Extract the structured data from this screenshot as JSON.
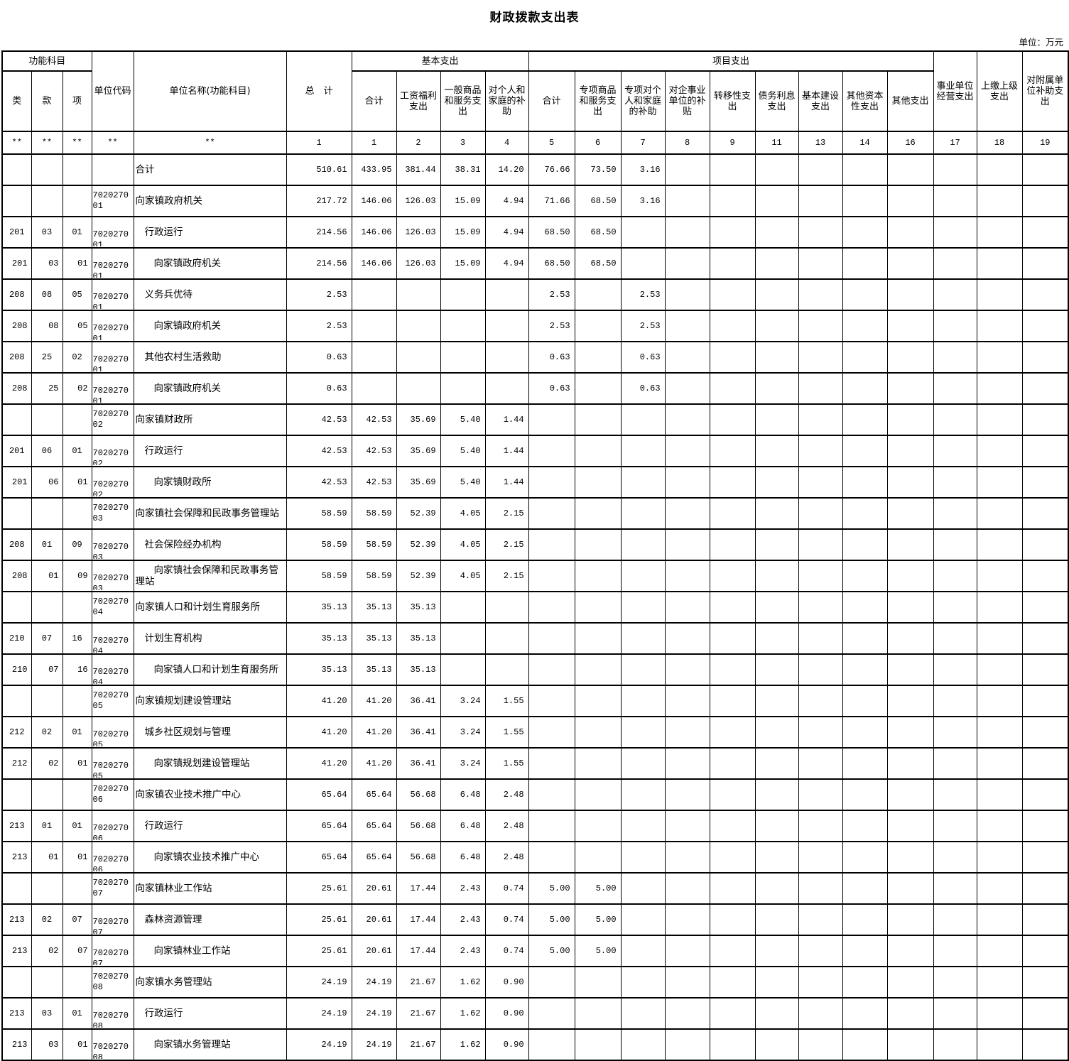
{
  "title": "财政拨款支出表",
  "unit_note": "单位：万元",
  "header": {
    "func_subject": "功能科目",
    "cls": "类",
    "section": "款",
    "item": "项",
    "unit_code": "单位代码",
    "unit_name": "单位名称(功能科目)",
    "grand_total": "总　计",
    "basic_group": "基本支出",
    "project_group": "项目支出",
    "basic_cols": [
      "合计",
      "工资福利支出",
      "一般商品和服务支出",
      "对个人和家庭的补助"
    ],
    "project_cols": [
      "合计",
      "专项商品和服务支出",
      "专项对个人和家庭的补助",
      "对企事业单位的补贴",
      "转移性支出",
      "债务利息支出",
      "基本建设支出",
      "其他资本性支出",
      "其他支出"
    ],
    "tail_cols": [
      "事业单位经营支出",
      "上缴上级支出",
      "对附属单位补助支出"
    ]
  },
  "code_row": [
    "**",
    "**",
    "**",
    "**",
    "**",
    "1",
    "1",
    "2",
    "3",
    "4",
    "5",
    "6",
    "7",
    "8",
    "9",
    "11",
    "13",
    "14",
    "16",
    "17",
    "18",
    "19"
  ],
  "rows": [
    {
      "cls": "",
      "kuan": "",
      "xiang": "",
      "code": "",
      "name": "合计",
      "level": 0,
      "values": [
        "510.61",
        "433.95",
        "381.44",
        "38.31",
        "14.20",
        "76.66",
        "73.50",
        "3.16",
        "",
        "",
        "",
        "",
        "",
        "",
        "",
        "",
        ""
      ]
    },
    {
      "cls": "",
      "kuan": "",
      "xiang": "",
      "code": "702027001",
      "name": "向家镇政府机关",
      "level": 0,
      "values": [
        "217.72",
        "146.06",
        "126.03",
        "15.09",
        "4.94",
        "71.66",
        "68.50",
        "3.16",
        "",
        "",
        "",
        "",
        "",
        "",
        "",
        "",
        ""
      ]
    },
    {
      "cls": "201",
      "kuan": "03",
      "xiang": "01",
      "code": "702027001",
      "name": "行政运行",
      "level": 1,
      "values": [
        "214.56",
        "146.06",
        "126.03",
        "15.09",
        "4.94",
        "68.50",
        "68.50",
        "",
        "",
        "",
        "",
        "",
        "",
        "",
        "",
        "",
        ""
      ]
    },
    {
      "cls": "201",
      "kuan": "03",
      "xiang": "01",
      "code": "702027001",
      "name": "向家镇政府机关",
      "level": 2,
      "values": [
        "214.56",
        "146.06",
        "126.03",
        "15.09",
        "4.94",
        "68.50",
        "68.50",
        "",
        "",
        "",
        "",
        "",
        "",
        "",
        "",
        "",
        ""
      ]
    },
    {
      "cls": "208",
      "kuan": "08",
      "xiang": "05",
      "code": "702027001",
      "name": "义务兵优待",
      "level": 1,
      "values": [
        "2.53",
        "",
        "",
        "",
        "",
        "2.53",
        "",
        "2.53",
        "",
        "",
        "",
        "",
        "",
        "",
        "",
        "",
        ""
      ]
    },
    {
      "cls": "208",
      "kuan": "08",
      "xiang": "05",
      "code": "702027001",
      "name": "向家镇政府机关",
      "level": 2,
      "values": [
        "2.53",
        "",
        "",
        "",
        "",
        "2.53",
        "",
        "2.53",
        "",
        "",
        "",
        "",
        "",
        "",
        "",
        "",
        ""
      ]
    },
    {
      "cls": "208",
      "kuan": "25",
      "xiang": "02",
      "code": "702027001",
      "name": "其他农村生活救助",
      "level": 1,
      "values": [
        "0.63",
        "",
        "",
        "",
        "",
        "0.63",
        "",
        "0.63",
        "",
        "",
        "",
        "",
        "",
        "",
        "",
        "",
        ""
      ]
    },
    {
      "cls": "208",
      "kuan": "25",
      "xiang": "02",
      "code": "702027001",
      "name": "向家镇政府机关",
      "level": 2,
      "values": [
        "0.63",
        "",
        "",
        "",
        "",
        "0.63",
        "",
        "0.63",
        "",
        "",
        "",
        "",
        "",
        "",
        "",
        "",
        ""
      ]
    },
    {
      "cls": "",
      "kuan": "",
      "xiang": "",
      "code": "702027002",
      "name": "向家镇财政所",
      "level": 0,
      "values": [
        "42.53",
        "42.53",
        "35.69",
        "5.40",
        "1.44",
        "",
        "",
        "",
        "",
        "",
        "",
        "",
        "",
        "",
        "",
        "",
        ""
      ]
    },
    {
      "cls": "201",
      "kuan": "06",
      "xiang": "01",
      "code": "702027002",
      "name": "行政运行",
      "level": 1,
      "values": [
        "42.53",
        "42.53",
        "35.69",
        "5.40",
        "1.44",
        "",
        "",
        "",
        "",
        "",
        "",
        "",
        "",
        "",
        "",
        "",
        ""
      ]
    },
    {
      "cls": "201",
      "kuan": "06",
      "xiang": "01",
      "code": "702027002",
      "name": "向家镇财政所",
      "level": 2,
      "values": [
        "42.53",
        "42.53",
        "35.69",
        "5.40",
        "1.44",
        "",
        "",
        "",
        "",
        "",
        "",
        "",
        "",
        "",
        "",
        "",
        ""
      ]
    },
    {
      "cls": "",
      "kuan": "",
      "xiang": "",
      "code": "702027003",
      "name": "向家镇社会保障和民政事务管理站",
      "level": 0,
      "values": [
        "58.59",
        "58.59",
        "52.39",
        "4.05",
        "2.15",
        "",
        "",
        "",
        "",
        "",
        "",
        "",
        "",
        "",
        "",
        "",
        ""
      ]
    },
    {
      "cls": "208",
      "kuan": "01",
      "xiang": "09",
      "code": "702027003",
      "name": "社会保险经办机构",
      "level": 1,
      "values": [
        "58.59",
        "58.59",
        "52.39",
        "4.05",
        "2.15",
        "",
        "",
        "",
        "",
        "",
        "",
        "",
        "",
        "",
        "",
        "",
        ""
      ]
    },
    {
      "cls": "208",
      "kuan": "01",
      "xiang": "09",
      "code": "702027003",
      "name": "向家镇社会保障和民政事务管理站",
      "level": 2,
      "values": [
        "58.59",
        "58.59",
        "52.39",
        "4.05",
        "2.15",
        "",
        "",
        "",
        "",
        "",
        "",
        "",
        "",
        "",
        "",
        "",
        ""
      ]
    },
    {
      "cls": "",
      "kuan": "",
      "xiang": "",
      "code": "702027004",
      "name": "向家镇人口和计划生育服务所",
      "level": 0,
      "values": [
        "35.13",
        "35.13",
        "35.13",
        "",
        "",
        "",
        "",
        "",
        "",
        "",
        "",
        "",
        "",
        "",
        "",
        "",
        ""
      ]
    },
    {
      "cls": "210",
      "kuan": "07",
      "xiang": "16",
      "code": "702027004",
      "name": "计划生育机构",
      "level": 1,
      "values": [
        "35.13",
        "35.13",
        "35.13",
        "",
        "",
        "",
        "",
        "",
        "",
        "",
        "",
        "",
        "",
        "",
        "",
        "",
        ""
      ]
    },
    {
      "cls": "210",
      "kuan": "07",
      "xiang": "16",
      "code": "702027004",
      "name": "向家镇人口和计划生育服务所",
      "level": 2,
      "values": [
        "35.13",
        "35.13",
        "35.13",
        "",
        "",
        "",
        "",
        "",
        "",
        "",
        "",
        "",
        "",
        "",
        "",
        "",
        ""
      ]
    },
    {
      "cls": "",
      "kuan": "",
      "xiang": "",
      "code": "702027005",
      "name": "向家镇规划建设管理站",
      "level": 0,
      "values": [
        "41.20",
        "41.20",
        "36.41",
        "3.24",
        "1.55",
        "",
        "",
        "",
        "",
        "",
        "",
        "",
        "",
        "",
        "",
        "",
        ""
      ]
    },
    {
      "cls": "212",
      "kuan": "02",
      "xiang": "01",
      "code": "702027005",
      "name": "城乡社区规划与管理",
      "level": 1,
      "values": [
        "41.20",
        "41.20",
        "36.41",
        "3.24",
        "1.55",
        "",
        "",
        "",
        "",
        "",
        "",
        "",
        "",
        "",
        "",
        "",
        ""
      ]
    },
    {
      "cls": "212",
      "kuan": "02",
      "xiang": "01",
      "code": "702027005",
      "name": "向家镇规划建设管理站",
      "level": 2,
      "values": [
        "41.20",
        "41.20",
        "36.41",
        "3.24",
        "1.55",
        "",
        "",
        "",
        "",
        "",
        "",
        "",
        "",
        "",
        "",
        "",
        ""
      ]
    },
    {
      "cls": "",
      "kuan": "",
      "xiang": "",
      "code": "702027006",
      "name": "向家镇农业技术推广中心",
      "level": 0,
      "values": [
        "65.64",
        "65.64",
        "56.68",
        "6.48",
        "2.48",
        "",
        "",
        "",
        "",
        "",
        "",
        "",
        "",
        "",
        "",
        "",
        ""
      ]
    },
    {
      "cls": "213",
      "kuan": "01",
      "xiang": "01",
      "code": "702027006",
      "name": "行政运行",
      "level": 1,
      "values": [
        "65.64",
        "65.64",
        "56.68",
        "6.48",
        "2.48",
        "",
        "",
        "",
        "",
        "",
        "",
        "",
        "",
        "",
        "",
        "",
        ""
      ]
    },
    {
      "cls": "213",
      "kuan": "01",
      "xiang": "01",
      "code": "702027006",
      "name": "向家镇农业技术推广中心",
      "level": 2,
      "values": [
        "65.64",
        "65.64",
        "56.68",
        "6.48",
        "2.48",
        "",
        "",
        "",
        "",
        "",
        "",
        "",
        "",
        "",
        "",
        "",
        ""
      ]
    },
    {
      "cls": "",
      "kuan": "",
      "xiang": "",
      "code": "702027007",
      "name": "向家镇林业工作站",
      "level": 0,
      "values": [
        "25.61",
        "20.61",
        "17.44",
        "2.43",
        "0.74",
        "5.00",
        "5.00",
        "",
        "",
        "",
        "",
        "",
        "",
        "",
        "",
        "",
        ""
      ]
    },
    {
      "cls": "213",
      "kuan": "02",
      "xiang": "07",
      "code": "702027007",
      "name": "森林资源管理",
      "level": 1,
      "values": [
        "25.61",
        "20.61",
        "17.44",
        "2.43",
        "0.74",
        "5.00",
        "5.00",
        "",
        "",
        "",
        "",
        "",
        "",
        "",
        "",
        "",
        ""
      ]
    },
    {
      "cls": "213",
      "kuan": "02",
      "xiang": "07",
      "code": "702027007",
      "name": "向家镇林业工作站",
      "level": 2,
      "values": [
        "25.61",
        "20.61",
        "17.44",
        "2.43",
        "0.74",
        "5.00",
        "5.00",
        "",
        "",
        "",
        "",
        "",
        "",
        "",
        "",
        "",
        ""
      ]
    },
    {
      "cls": "",
      "kuan": "",
      "xiang": "",
      "code": "702027008",
      "name": "向家镇水务管理站",
      "level": 0,
      "values": [
        "24.19",
        "24.19",
        "21.67",
        "1.62",
        "0.90",
        "",
        "",
        "",
        "",
        "",
        "",
        "",
        "",
        "",
        "",
        "",
        ""
      ]
    },
    {
      "cls": "213",
      "kuan": "03",
      "xiang": "01",
      "code": "702027008",
      "name": "行政运行",
      "level": 1,
      "values": [
        "24.19",
        "24.19",
        "21.67",
        "1.62",
        "0.90",
        "",
        "",
        "",
        "",
        "",
        "",
        "",
        "",
        "",
        "",
        "",
        ""
      ]
    },
    {
      "cls": "213",
      "kuan": "03",
      "xiang": "01",
      "code": "702027008",
      "name": "向家镇水务管理站",
      "level": 2,
      "values": [
        "24.19",
        "24.19",
        "21.67",
        "1.62",
        "0.90",
        "",
        "",
        "",
        "",
        "",
        "",
        "",
        "",
        "",
        "",
        "",
        ""
      ]
    }
  ]
}
